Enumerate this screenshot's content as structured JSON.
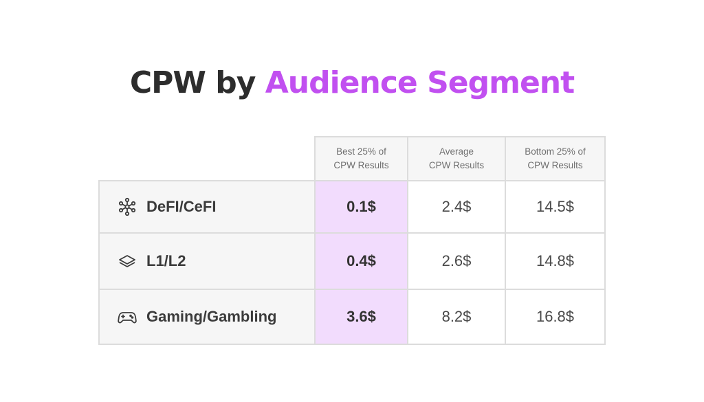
{
  "title": {
    "part1": "CPW by ",
    "part2": "Audience Segment"
  },
  "colors": {
    "accent": "#c150f0",
    "highlight": "#f2dcfd",
    "border": "#dcdcdc",
    "header_bg": "#f6f6f6"
  },
  "table": {
    "columns": [
      {
        "line1": "Best 25% of",
        "line2": "CPW Results"
      },
      {
        "line1": "Average",
        "line2": "CPW Results"
      },
      {
        "line1": "Bottom 25% of",
        "line2": "CPW Results"
      }
    ],
    "rows": [
      {
        "icon": "network-nodes-icon",
        "label": "DeFI/CeFI",
        "best": "0.1$",
        "average": "2.4$",
        "bottom": "14.5$"
      },
      {
        "icon": "layers-icon",
        "label": "L1/L2",
        "best": "0.4$",
        "average": "2.6$",
        "bottom": "14.8$"
      },
      {
        "icon": "gamepad-icon",
        "label": "Gaming/Gambling",
        "best": "3.6$",
        "average": "8.2$",
        "bottom": "16.8$"
      }
    ]
  }
}
